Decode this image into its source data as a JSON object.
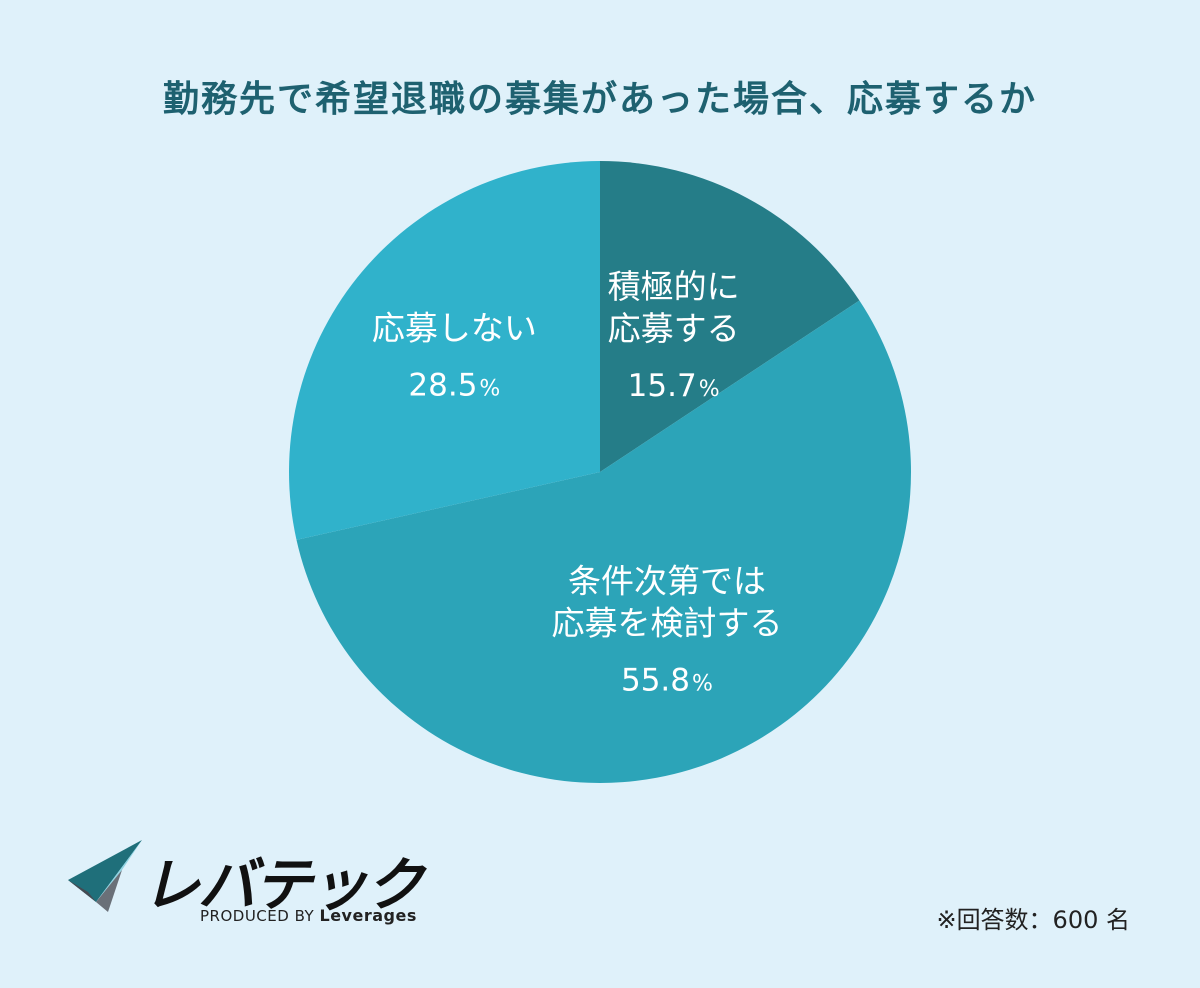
{
  "chart_data": {
    "type": "pie",
    "title": "勤務先で希望退職の募集があった場合、応募するか",
    "slices": [
      {
        "label_lines": [
          "積極的に",
          "応募する"
        ],
        "value": 15.7,
        "value_text": "15.7",
        "unit": "%",
        "color": "#257d88"
      },
      {
        "label_lines": [
          "条件次第では",
          "応募を検討する"
        ],
        "value": 55.8,
        "value_text": "55.8",
        "unit": "%",
        "color": "#2ca4b8"
      },
      {
        "label_lines": [
          "応募しない"
        ],
        "value": 28.5,
        "value_text": "28.5",
        "unit": "%",
        "color": "#30b2cb"
      }
    ],
    "start": "12 o'clock",
    "direction": "clockwise",
    "legend": "none"
  },
  "brand": {
    "name": "レバテック",
    "tagline_prefix": "PRODUCED BY",
    "tagline_brand": "Leverages"
  },
  "note": "※回答数：600 名",
  "colors": {
    "background": "#dff1fa",
    "title": "#1e6170"
  }
}
